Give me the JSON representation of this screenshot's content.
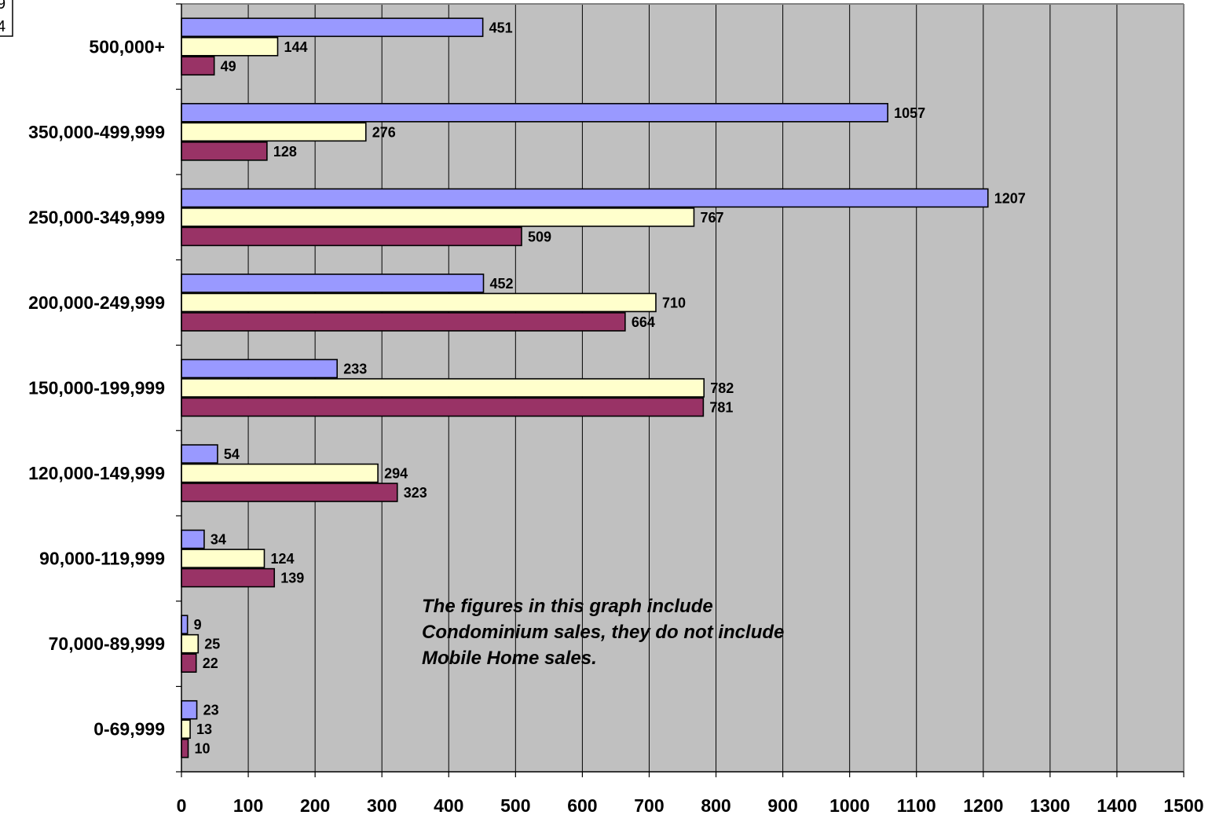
{
  "chart_data": {
    "type": "bar",
    "orientation": "horizontal",
    "categories": [
      "500,000+",
      "350,000-499,999",
      "250,000-349,999",
      "200,000-249,999",
      "150,000-199,999",
      "120,000-149,999",
      "90,000-119,999",
      "70,000-89,999",
      "0-69,999"
    ],
    "series": [
      {
        "color": "#9999ff",
        "values": [
          451,
          1057,
          1207,
          452,
          233,
          54,
          34,
          9,
          23
        ]
      },
      {
        "color": "#ffffcc",
        "values": [
          144,
          276,
          767,
          710,
          782,
          294,
          124,
          25,
          13
        ]
      },
      {
        "color": "#993366",
        "values": [
          49,
          128,
          509,
          664,
          781,
          323,
          139,
          22,
          10
        ]
      }
    ],
    "xticks": [
      0,
      100,
      200,
      300,
      400,
      500,
      600,
      700,
      800,
      900,
      1000,
      1100,
      1200,
      1300,
      1400,
      1500
    ],
    "xlim": [
      0,
      1500
    ],
    "grid": "vertical",
    "plot_background": "#c0c0c0",
    "annotation": [
      "The figures in this graph include",
      "Condominium sales, they do not include",
      "Mobile Home sales."
    ],
    "legend_fragments": [
      "9",
      "4"
    ]
  }
}
